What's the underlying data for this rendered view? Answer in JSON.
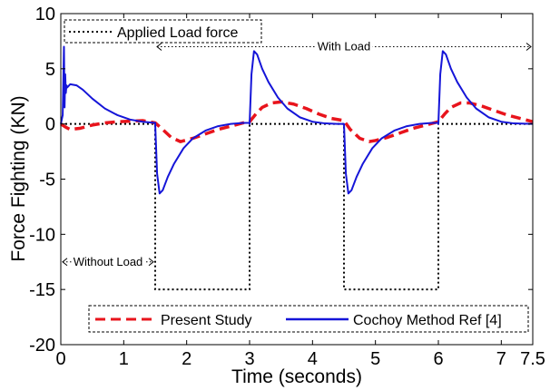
{
  "chart_data": {
    "type": "line",
    "title": "",
    "xlabel": "Time (seconds)",
    "ylabel": "Force Fighting (KN)",
    "xlim": [
      0,
      7.5
    ],
    "ylim": [
      -20,
      10
    ],
    "x_ticks": [
      0,
      1,
      2,
      3,
      4,
      5,
      6,
      7,
      7.5
    ],
    "x_tick_labels": [
      "0",
      "1",
      "2",
      "3",
      "4",
      "5",
      "6",
      "7",
      "7.5"
    ],
    "y_ticks": [
      10,
      5,
      0,
      -5,
      -10,
      -15,
      -20
    ],
    "y_tick_labels": [
      "10",
      "5",
      "0",
      "-5",
      "-10",
      "-15",
      "-20"
    ],
    "grid": false,
    "legend_top": {
      "placement": "top-left",
      "entries": [
        "Applied Load force"
      ]
    },
    "legend_bottom": {
      "placement": "bottom",
      "entries": [
        "Present Study",
        "Cochoy Method Ref [4]"
      ]
    },
    "annotations": [
      {
        "text": "With Load",
        "x_range": [
          1.5,
          7.5
        ],
        "y": 7
      },
      {
        "text": "Without Load",
        "x_range": [
          0,
          1.5
        ],
        "y": -12.5
      }
    ],
    "series": [
      {
        "name": "Applied Load force",
        "color": "#000000",
        "style": "dotted",
        "x": [
          0,
          1.5,
          1.5,
          3,
          3,
          4.5,
          4.5,
          6,
          6,
          7.5
        ],
        "y": [
          0,
          0,
          -15,
          -15,
          0,
          0,
          -15,
          -15,
          0,
          0
        ]
      },
      {
        "name": "Present Study",
        "color": "#e8141c",
        "style": "dashed",
        "x": [
          0,
          0.08,
          0.15,
          0.3,
          0.5,
          0.7,
          0.9,
          1.1,
          1.3,
          1.5,
          1.6,
          1.75,
          1.9,
          2.1,
          2.3,
          2.5,
          2.7,
          2.9,
          3.0,
          3.1,
          3.2,
          3.35,
          3.5,
          3.7,
          3.9,
          4.1,
          4.3,
          4.5,
          4.6,
          4.75,
          4.9,
          5.0,
          5.2,
          5.4,
          5.6,
          5.8,
          6.0,
          6.1,
          6.2,
          6.35,
          6.5,
          6.7,
          6.9,
          7.1,
          7.3,
          7.5
        ],
        "y": [
          0,
          -0.3,
          -0.5,
          -0.4,
          -0.1,
          0.1,
          0.2,
          0.25,
          0.3,
          0.1,
          -0.4,
          -1.2,
          -1.6,
          -1.3,
          -0.9,
          -0.5,
          -0.2,
          0.1,
          0.2,
          0.9,
          1.5,
          1.9,
          2.0,
          1.8,
          1.4,
          0.9,
          0.5,
          0.3,
          -0.5,
          -1.3,
          -1.6,
          -1.5,
          -1.2,
          -0.8,
          -0.4,
          -0.1,
          0.2,
          0.9,
          1.5,
          1.9,
          1.9,
          1.6,
          1.2,
          0.8,
          0.5,
          0.2
        ]
      },
      {
        "name": "Cochoy Method Ref [4]",
        "color": "#1515d8",
        "style": "solid",
        "x": [
          0,
          0.03,
          0.05,
          0.06,
          0.07,
          0.08,
          0.09,
          0.1,
          0.15,
          0.25,
          0.35,
          0.5,
          0.7,
          0.9,
          1.1,
          1.3,
          1.5,
          1.5,
          1.53,
          1.57,
          1.62,
          1.7,
          1.8,
          1.95,
          2.1,
          2.3,
          2.5,
          2.7,
          2.9,
          3.0,
          3.0,
          3.03,
          3.07,
          3.12,
          3.2,
          3.3,
          3.45,
          3.6,
          3.8,
          4.0,
          4.2,
          4.4,
          4.5,
          4.5,
          4.53,
          4.57,
          4.62,
          4.7,
          4.8,
          4.95,
          5.1,
          5.3,
          5.5,
          5.7,
          5.9,
          6.0,
          6.0,
          6.03,
          6.07,
          6.12,
          6.2,
          6.3,
          6.45,
          6.6,
          6.8,
          7.0,
          7.2,
          7.5
        ],
        "y": [
          0,
          0.8,
          7.0,
          1.5,
          4.5,
          2.8,
          3.5,
          3.3,
          3.6,
          3.5,
          3.1,
          2.3,
          1.4,
          0.8,
          0.4,
          0.2,
          0.1,
          0,
          -4.5,
          -6.3,
          -6.0,
          -4.8,
          -3.6,
          -2.2,
          -1.3,
          -0.6,
          -0.2,
          0,
          0.1,
          0.1,
          0,
          4.5,
          6.6,
          6.3,
          5.0,
          3.8,
          2.4,
          1.4,
          0.6,
          0.2,
          0.05,
          0,
          0,
          0,
          -4.5,
          -6.3,
          -6.0,
          -4.8,
          -3.6,
          -2.2,
          -1.3,
          -0.6,
          -0.2,
          0,
          0.1,
          0.1,
          0,
          4.5,
          6.6,
          6.3,
          5.0,
          3.8,
          2.4,
          1.4,
          0.6,
          0.2,
          0.05,
          0
        ]
      }
    ]
  }
}
